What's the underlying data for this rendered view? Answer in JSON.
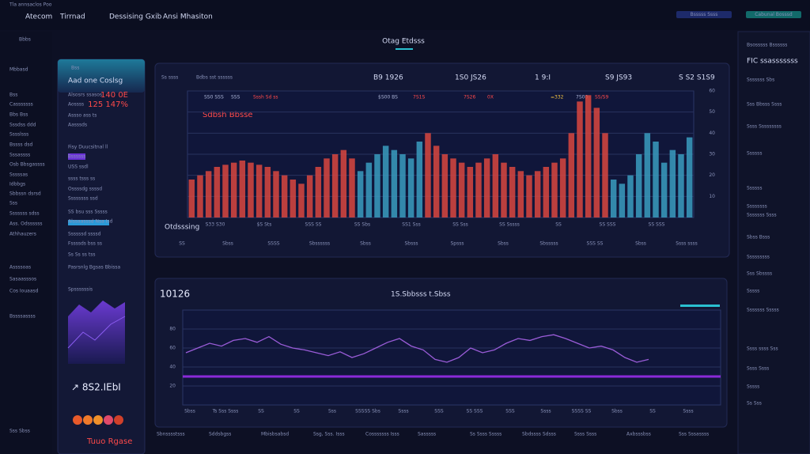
{
  "nav": {
    "brand": "Tla annsaclos Poo",
    "tabs": [
      "Atecom",
      "Tirrnad",
      "Dessising Gxib",
      "Ansi Mhasiton"
    ],
    "buttons": [
      "Bsssss Ssss",
      "Cabunal Bosssd"
    ],
    "tool": "Bbbs"
  },
  "sidebar": {
    "items": [
      "Mbbasd",
      "Bss",
      "Casssssss",
      "Bbs Bss",
      "Sssdss ddd",
      "Sssslsss",
      "Bssss dsd",
      "Sssassss",
      "Osb Bbsgassss",
      "Sssssas",
      "Idbbgs",
      "Sbbssn dsrsd",
      "Sss",
      "Sssssss sdss",
      "Ass. Odssssss",
      "Athhauzers",
      "Assssoas",
      "Sasaasssos",
      "Cos Iouaasd",
      "Bssssassss",
      "Sss Sbss"
    ]
  },
  "panel": {
    "chip": "Bss",
    "title": "Aad one Coslsg",
    "rows": [
      [
        "Alsosrs ssasos",
        "140 0E"
      ],
      [
        "Aossss",
        "125 147%"
      ]
    ],
    "lines": [
      "Assso ass ts",
      "Aasssds",
      "Fisy Duucsitnal ll",
      "USS ssdl",
      "ssss tsss ss",
      "Ossssdg ssssd",
      "Ssssssss ssd",
      "SS bsu sss Sssss",
      "Alssaasssd Nsa Isd",
      "Ssssssd ssssd",
      "Fssssds bss ss",
      "Ss Ss ss tss",
      "Pasrsnlg Bgsas Bbissa",
      "Spssssssis"
    ],
    "button": "Bssssss",
    "big": "↗ 8S2.IEbI",
    "footer": "Tuuo Rgase"
  },
  "main": {
    "title": "Otag Etdsss",
    "top_chart": {
      "stats": [
        "Ss ssss",
        "Bdbs sst ssssss",
        "B9 1926",
        "1S0 JS26",
        "1 9:I",
        "S9 JS93",
        "S S2 S1S9"
      ],
      "legend": [
        "SS0 SSS",
        "SSS",
        "Sssh Sd ss",
        "$S00 BS",
        "7S1S",
        "7S26",
        "0X",
        "=332",
        "7S00",
        "SS/S9"
      ],
      "annotation": "Sdbsh Bbsse",
      "ylim": [
        0,
        60
      ],
      "yticks": [
        10,
        20,
        30,
        40,
        50,
        60
      ],
      "grid": true,
      "series": [
        {
          "color": "#d9463f",
          "values": [
            18,
            20,
            22,
            24,
            25,
            26,
            27,
            26,
            25,
            24,
            22,
            20,
            18,
            16,
            20,
            24,
            28,
            30,
            32,
            28,
            null,
            null,
            null,
            null,
            null,
            null,
            null,
            null,
            40,
            34,
            30,
            28,
            26,
            24,
            26,
            28,
            30,
            26,
            24,
            22,
            20,
            22,
            24,
            26,
            28,
            40,
            55,
            58,
            52,
            40,
            null,
            null,
            null,
            null,
            null,
            null,
            null,
            null,
            null,
            null
          ]
        },
        {
          "color": "#3a9cc0",
          "values": [
            null,
            null,
            null,
            null,
            null,
            null,
            null,
            null,
            null,
            null,
            null,
            null,
            null,
            null,
            null,
            null,
            null,
            null,
            null,
            null,
            22,
            26,
            30,
            34,
            32,
            30,
            28,
            36,
            null,
            null,
            null,
            null,
            null,
            null,
            null,
            null,
            null,
            null,
            null,
            null,
            null,
            null,
            null,
            null,
            null,
            null,
            null,
            null,
            null,
            null,
            18,
            16,
            20,
            30,
            40,
            36,
            26,
            32,
            30,
            38
          ]
        }
      ],
      "xlabel": "Otdsssing",
      "xticks": [
        "S33 S30",
        "$S Sts",
        "SSS SS",
        "SS Sbs",
        "SS1 Sss",
        "SS Sss",
        "SS Sssss",
        "SS",
        "SS SSS",
        "SS SSS"
      ],
      "footer": [
        "SS",
        "Sbss",
        "SSSS",
        "Sbssssss",
        "Sbss",
        "Sbsss",
        "Spsss",
        "Sbss",
        "Sbsssss",
        "SSS SS",
        "Sbss",
        "Ssss ssss"
      ]
    },
    "bottom_chart": {
      "value": "10126",
      "subtitle": "1S.Sbbsss t.Sbss",
      "ylim": [
        0,
        100
      ],
      "yticks": [
        20,
        40,
        60,
        80
      ],
      "grid": true,
      "color": "#9a5cd8",
      "level": 30,
      "values": [
        55,
        60,
        65,
        62,
        68,
        70,
        66,
        72,
        64,
        60,
        58,
        55,
        52,
        56,
        50,
        54,
        60,
        66,
        70,
        62,
        58,
        48,
        45,
        50,
        60,
        55,
        58,
        65,
        70,
        68,
        72,
        74,
        70,
        65,
        60,
        62,
        58,
        50,
        45,
        48
      ],
      "xticks": [
        "Sbss",
        "Ts Sss Ssss",
        "SS",
        "SS",
        "Sss",
        "SSSSS Sbs",
        "Ssss",
        "SSS",
        "SS SSS",
        "SSS",
        "Ssss",
        "SSSS SS",
        "Sbss",
        "SS",
        "Ssss"
      ]
    }
  },
  "footer": [
    "Sbnsssstsss",
    "Sddsbgss",
    "Mbisbsabsd",
    "Ssg, Sss. Isss",
    "Cosssssss Isss",
    "Sasssss",
    "Ss Ssss Sssss",
    "Sbdssss Sdsss",
    "Ssss Ssss",
    "Axbsssbss",
    "Sss Sssassss"
  ],
  "right": {
    "items": [
      "Bsosssss Bssssss",
      "FIC ssasssssss",
      "Sssssss Sbs",
      "Sss Bbsss Ssss",
      "Ssss Sssssssss",
      "Ssssss",
      "Ssssss",
      "Ssssssss",
      "Sssssss Ssss",
      "Sbss Bsss",
      "Sssssssss",
      "Sss Sbssss",
      "Sssss",
      "Sssssss Sssss",
      "Ssss ssss Sss",
      "Ssss Ssss",
      "Sssss",
      "Ss Sss"
    ]
  }
}
